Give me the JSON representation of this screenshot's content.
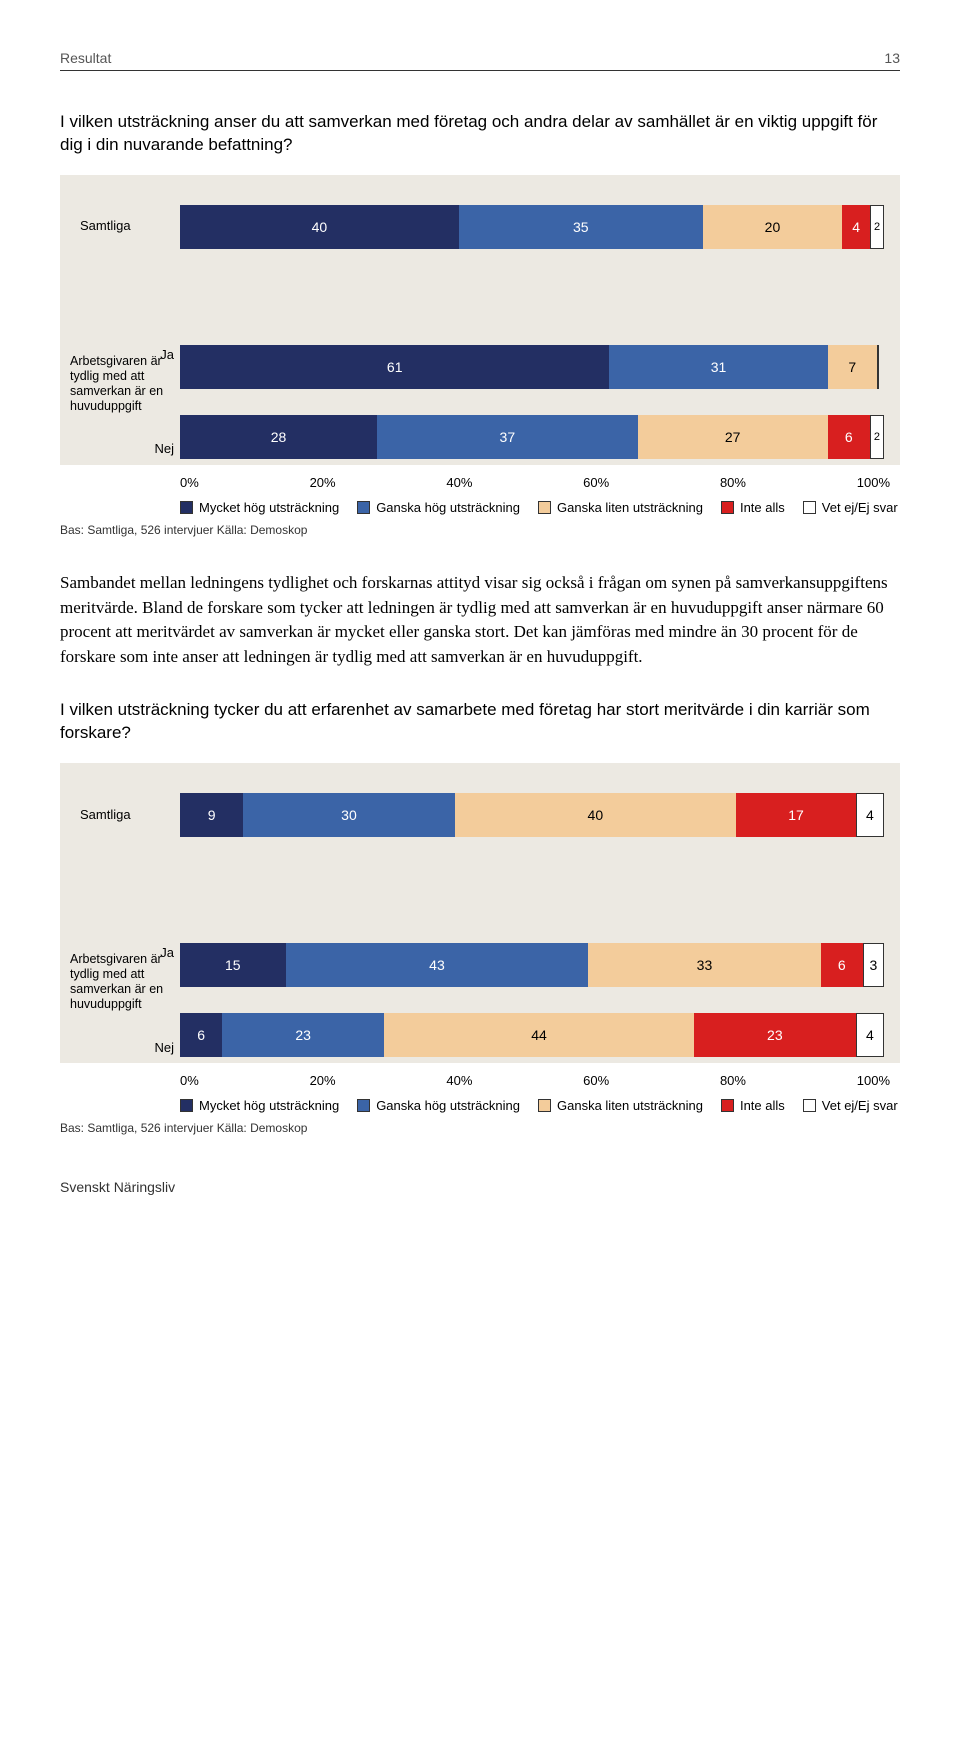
{
  "header": {
    "section": "Resultat",
    "page": "13"
  },
  "colors": {
    "c1": "#232f63",
    "c2": "#3b64a7",
    "c3": "#f3cc9b",
    "c4": "#d81f1f",
    "c5": "#ffffff",
    "chart_bg": "#ece9e2",
    "border": "#333333"
  },
  "legend": {
    "l1": "Mycket hög utsträckning",
    "l2": "Ganska hög utsträckning",
    "l3": "Ganska liten utsträckning",
    "l4": "Inte alls",
    "l5": "Vet ej/Ej svar"
  },
  "axis": {
    "t0": "0%",
    "t20": "20%",
    "t40": "40%",
    "t60": "60%",
    "t80": "80%",
    "t100": "100%"
  },
  "source": "Bas: Samtliga, 526 intervjuer    Källa: Demoskop",
  "chart1": {
    "question": "I vilken utsträckning anser du att samverkan med företag och andra delar av samhället är en viktig uppgift för dig i din nuvarande befattning?",
    "row1": {
      "label": "Samtliga",
      "v": [
        40,
        35,
        20,
        4,
        2
      ]
    },
    "group_label": "Arbetsgivaren är tydlig med att samverkan är en huvuduppgift",
    "row2": {
      "label": "Ja",
      "v": [
        61,
        31,
        7,
        0,
        0
      ]
    },
    "row3": {
      "label": "Nej",
      "v": [
        28,
        37,
        27,
        6,
        2
      ]
    }
  },
  "para": "Sambandet mellan ledningens tydlighet och forskarnas attityd visar sig också i frågan om synen på samverkansuppgiftens meritvärde. Bland de forskare som tycker att ledningen är tydlig med att samverkan är en huvuduppgift anser närmare 60 procent att meritvärdet av samverkan är mycket eller ganska stort. Det kan jämföras med mindre än 30 procent för de forskare som inte anser att ledningen är tydlig med att samverkan är en huvuduppgift.",
  "chart2": {
    "question": "I vilken utsträckning tycker du att erfarenhet av samarbete med företag har stort meritvärde i din karriär som forskare?",
    "row1": {
      "label": "Samtliga",
      "v": [
        9,
        30,
        40,
        17,
        4
      ]
    },
    "group_label": "Arbetsgivaren är tydlig med att samverkan är en huvuduppgift",
    "row2": {
      "label": "Ja",
      "v": [
        15,
        43,
        33,
        6,
        3
      ]
    },
    "row3": {
      "label": "Nej",
      "v": [
        6,
        23,
        44,
        23,
        4
      ]
    }
  },
  "footer": "Svenskt Näringsliv"
}
